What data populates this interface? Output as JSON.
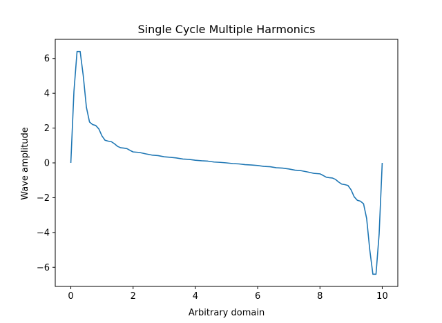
{
  "chart_data": {
    "type": "line",
    "title": "Single Cycle Multiple Harmonics",
    "xlabel": "Arbitrary domain",
    "ylabel": "Wave amplitude",
    "xlim": [
      -0.5,
      10.5
    ],
    "ylim": [
      -7.1,
      7.1
    ],
    "xticks": [
      0,
      2,
      4,
      6,
      8,
      10
    ],
    "xtick_labels": [
      "0",
      "2",
      "4",
      "6",
      "8",
      "10"
    ],
    "yticks": [
      -6,
      -4,
      -2,
      0,
      2,
      4,
      6
    ],
    "ytick_labels": [
      "−6",
      "−4",
      "−2",
      "0",
      "2",
      "4",
      "6"
    ],
    "grid": false,
    "series": [
      {
        "color": "#1f77b4",
        "x": [
          0,
          0.1,
          0.2,
          0.3,
          0.4,
          0.5,
          0.6,
          0.7,
          0.8,
          0.9,
          1.0,
          1.1,
          1.2,
          1.3,
          1.4,
          1.5,
          1.6,
          1.7,
          1.8,
          1.9,
          2.0,
          2.2,
          2.4,
          2.6,
          2.8,
          3.0,
          3.2,
          3.4,
          3.6,
          3.8,
          4.0,
          4.2,
          4.4,
          4.6,
          4.8,
          5.0,
          5.2,
          5.4,
          5.6,
          5.8,
          6.0,
          6.2,
          6.4,
          6.6,
          6.8,
          7.0,
          7.2,
          7.4,
          7.6,
          7.8,
          8.0,
          8.1,
          8.2,
          8.3,
          8.4,
          8.5,
          8.6,
          8.7,
          8.8,
          8.9,
          9.0,
          9.1,
          9.2,
          9.3,
          9.4,
          9.5,
          9.6,
          9.7,
          9.8,
          9.9,
          10.0
        ],
        "y": [
          0.0,
          4.1,
          6.4,
          6.4,
          5.0,
          3.2,
          2.35,
          2.2,
          2.15,
          1.95,
          1.55,
          1.3,
          1.25,
          1.22,
          1.1,
          0.95,
          0.87,
          0.85,
          0.82,
          0.72,
          0.63,
          0.6,
          0.52,
          0.45,
          0.42,
          0.35,
          0.32,
          0.28,
          0.22,
          0.2,
          0.15,
          0.12,
          0.1,
          0.05,
          0.03,
          0.0,
          -0.04,
          -0.06,
          -0.1,
          -0.12,
          -0.15,
          -0.2,
          -0.22,
          -0.28,
          -0.3,
          -0.35,
          -0.42,
          -0.45,
          -0.52,
          -0.6,
          -0.63,
          -0.72,
          -0.82,
          -0.85,
          -0.87,
          -0.95,
          -1.1,
          -1.22,
          -1.25,
          -1.3,
          -1.55,
          -1.95,
          -2.15,
          -2.2,
          -2.35,
          -3.2,
          -5.0,
          -6.4,
          -6.4,
          -4.1,
          0.0
        ]
      }
    ]
  }
}
